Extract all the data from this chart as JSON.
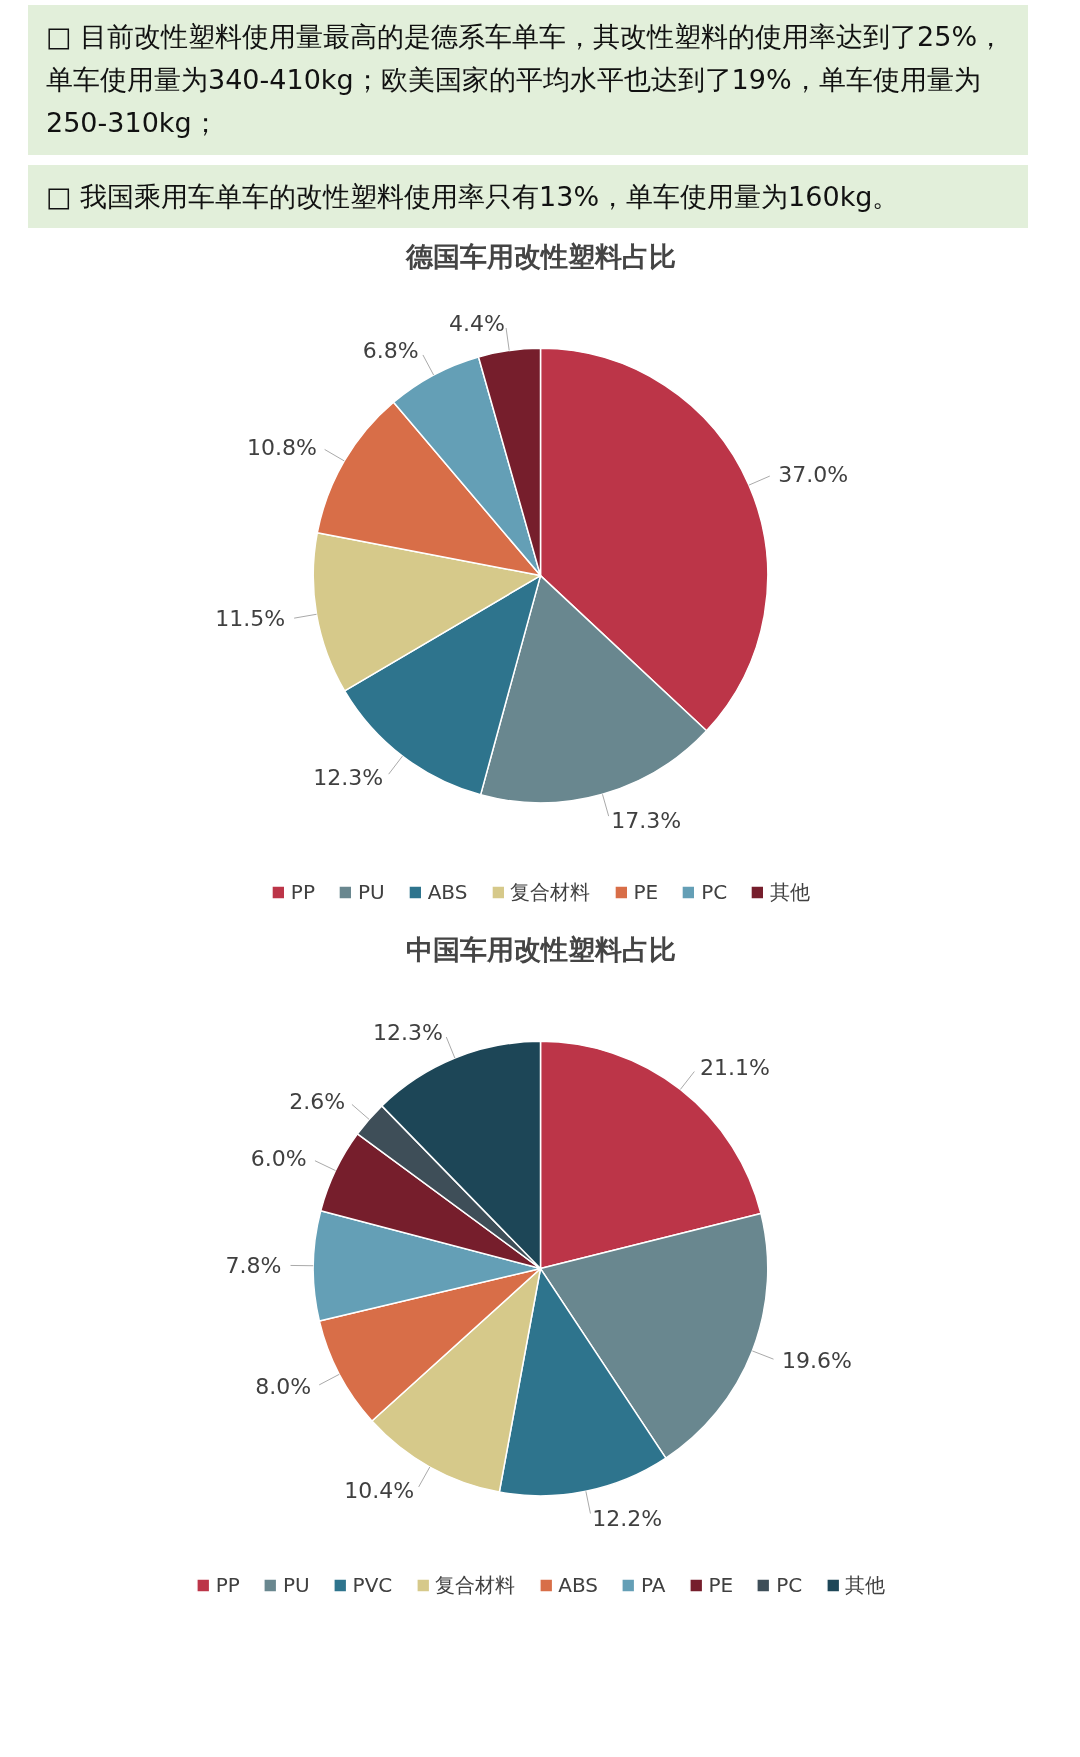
{
  "chart_data": [
    {
      "type": "pie",
      "title": "德国车用改性塑料占比",
      "annotations": [
        "□ 目前改性塑料使用量最高的是德系车单车，其改性塑料的使用率达到了25%，单车使用量为340-410kg；欧美国家的平均水平也达到了19%，单车使用量为250-310kg；",
        "□ 我国乘用车单车的改性塑料使用率只有13%，单车使用量为160kg。"
      ],
      "categories": [
        "PP",
        "PU",
        "ABS",
        "复合材料",
        "PE",
        "PC",
        "其他"
      ],
      "values": [
        37.0,
        17.3,
        12.3,
        11.5,
        10.8,
        6.8,
        4.4
      ],
      "colors": [
        "#bc3548",
        "#69878f",
        "#2e748d",
        "#d6c98a",
        "#d86e48",
        "#649fb6",
        "#761e2c"
      ],
      "value_labels": [
        "37.0%",
        "17.3%",
        "12.3%",
        "11.5%",
        "10.8%",
        "6.8%",
        "4.4%"
      ],
      "legend": "bottom"
    },
    {
      "type": "pie",
      "title": "中国车用改性塑料占比",
      "categories": [
        "PP",
        "PU",
        "PVC",
        "复合材料",
        "ABS",
        "PA",
        "PE",
        "PC",
        "其他"
      ],
      "values": [
        21.1,
        19.6,
        12.2,
        10.4,
        8.0,
        7.8,
        6.0,
        2.6,
        12.3
      ],
      "colors": [
        "#bc3548",
        "#69878f",
        "#2e748d",
        "#d6c98a",
        "#d86e48",
        "#649fb6",
        "#761e2c",
        "#3e4e58",
        "#1d4657"
      ],
      "value_labels": [
        "21.1%",
        "19.6%",
        "12.2%",
        "10.4%",
        "8.0%",
        "7.8%",
        "6.0%",
        "2.6%",
        "12.3%"
      ],
      "legend": "bottom"
    }
  ]
}
